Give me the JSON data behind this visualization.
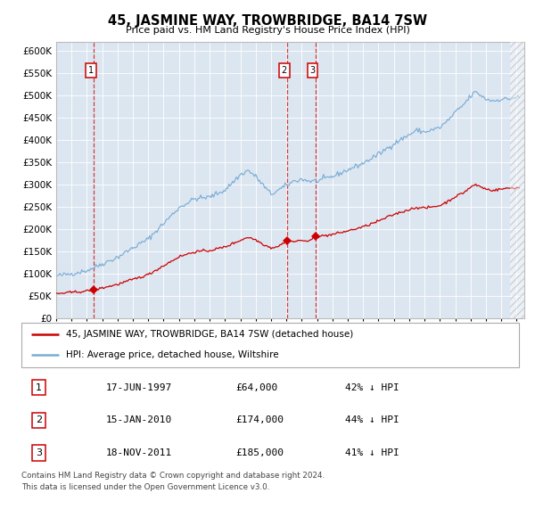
{
  "title": "45, JASMINE WAY, TROWBRIDGE, BA14 7SW",
  "subtitle": "Price paid vs. HM Land Registry's House Price Index (HPI)",
  "bg_color": "#dce6f1",
  "red_line_color": "#cc0000",
  "blue_line_color": "#7aadd4",
  "ylim": [
    0,
    620000
  ],
  "yticks": [
    0,
    50000,
    100000,
    150000,
    200000,
    250000,
    300000,
    350000,
    400000,
    450000,
    500000,
    550000,
    600000
  ],
  "trans_years": [
    1997.46,
    2010.04,
    2011.88
  ],
  "trans_prices": [
    64000,
    174000,
    185000
  ],
  "legend_red": "45, JASMINE WAY, TROWBRIDGE, BA14 7SW (detached house)",
  "legend_blue": "HPI: Average price, detached house, Wiltshire",
  "table_rows": [
    {
      "num": "1",
      "date": "17-JUN-1997",
      "price": "£64,000",
      "pct": "42% ↓ HPI"
    },
    {
      "num": "2",
      "date": "15-JAN-2010",
      "price": "£174,000",
      "pct": "44% ↓ HPI"
    },
    {
      "num": "3",
      "date": "18-NOV-2011",
      "price": "£185,000",
      "pct": "41% ↓ HPI"
    }
  ],
  "footer_line1": "Contains HM Land Registry data © Crown copyright and database right 2024.",
  "footer_line2": "This data is licensed under the Open Government Licence v3.0.",
  "xmin": 1995,
  "xmax": 2025.5
}
